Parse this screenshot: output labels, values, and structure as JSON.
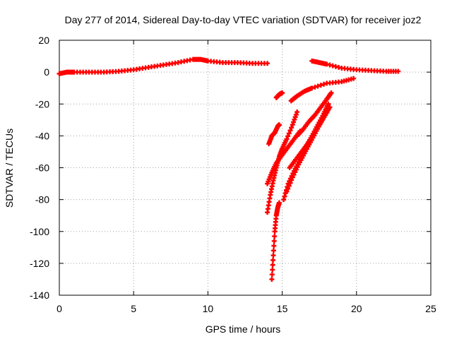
{
  "chart_data": {
    "type": "scatter",
    "title": "Day 277 of 2014, Sidereal Day-to-day VTEC variation (SDTVAR) for receiver joz2",
    "xlabel": "GPS time / hours",
    "ylabel": "SDTVAR / TECUs",
    "xlim": [
      0,
      25
    ],
    "ylim": [
      -140,
      20
    ],
    "xticks": [
      "0",
      "5",
      "10",
      "15",
      "20",
      "25"
    ],
    "yticks": [
      "20",
      "0",
      "-20",
      "-40",
      "-60",
      "-80",
      "-100",
      "-120",
      "-140"
    ],
    "grid": true,
    "legend": "none",
    "marker": "+",
    "color": "#ff0000",
    "series": [
      {
        "points": [
          [
            0,
            -1
          ],
          [
            0.5,
            0
          ],
          [
            1,
            0
          ],
          [
            2,
            0
          ],
          [
            3,
            0
          ],
          [
            4,
            0.5
          ],
          [
            5,
            1.5
          ],
          [
            6,
            3
          ],
          [
            7,
            4.5
          ],
          [
            8,
            6
          ],
          [
            9,
            8
          ],
          [
            9.5,
            8
          ],
          [
            10,
            7
          ],
          [
            11,
            6
          ],
          [
            12,
            6
          ],
          [
            13,
            5.5
          ],
          [
            14,
            5.5
          ]
        ]
      },
      {
        "points": [
          [
            17,
            7
          ],
          [
            17.5,
            6
          ],
          [
            18,
            5
          ],
          [
            19,
            2.5
          ],
          [
            20,
            1.5
          ],
          [
            21,
            1
          ],
          [
            22,
            0.5
          ],
          [
            22.8,
            0.5
          ]
        ]
      },
      {
        "points": [
          [
            14.1,
            -45
          ],
          [
            14.3,
            -40
          ],
          [
            14.5,
            -38
          ],
          [
            14.7,
            -34
          ],
          [
            14.8,
            -33
          ]
        ]
      },
      {
        "points": [
          [
            14.6,
            -16
          ],
          [
            14.8,
            -14
          ],
          [
            15,
            -13
          ]
        ]
      },
      {
        "points": [
          [
            15.6,
            -18
          ],
          [
            16,
            -15
          ],
          [
            16.5,
            -12
          ],
          [
            17,
            -10
          ],
          [
            18,
            -7
          ],
          [
            19,
            -6
          ],
          [
            19.8,
            -4
          ]
        ]
      },
      {
        "points": [
          [
            14,
            -88
          ],
          [
            14.2,
            -77
          ],
          [
            14.4,
            -68
          ],
          [
            14.6,
            -60
          ],
          [
            14.8,
            -53
          ],
          [
            15,
            -48
          ],
          [
            15.3,
            -42
          ],
          [
            15.7,
            -33
          ],
          [
            16,
            -25
          ]
        ]
      },
      {
        "points": [
          [
            14,
            -70
          ],
          [
            14.3,
            -63
          ],
          [
            14.6,
            -57
          ],
          [
            15,
            -52
          ],
          [
            15.4,
            -47
          ],
          [
            15.8,
            -42
          ],
          [
            16.2,
            -37
          ]
        ]
      },
      {
        "points": [
          [
            14.3,
            -130
          ],
          [
            14.4,
            -115
          ],
          [
            14.5,
            -100
          ],
          [
            14.6,
            -90
          ],
          [
            14.7,
            -85
          ],
          [
            14.8,
            -82
          ]
        ]
      },
      {
        "points": [
          [
            15.1,
            -80
          ],
          [
            15.4,
            -70
          ],
          [
            15.8,
            -62
          ],
          [
            16.2,
            -55
          ],
          [
            16.6,
            -47
          ],
          [
            17,
            -40
          ],
          [
            17.4,
            -33
          ],
          [
            17.8,
            -26
          ],
          [
            18.1,
            -20
          ]
        ]
      },
      {
        "points": [
          [
            15.3,
            -75
          ],
          [
            15.7,
            -66
          ],
          [
            16.1,
            -58
          ],
          [
            16.5,
            -51
          ],
          [
            16.9,
            -44
          ],
          [
            17.3,
            -37
          ],
          [
            17.7,
            -30
          ],
          [
            18,
            -24
          ]
        ]
      },
      {
        "points": [
          [
            15.5,
            -60
          ],
          [
            15.9,
            -55
          ],
          [
            16.3,
            -50
          ],
          [
            16.7,
            -45
          ],
          [
            17.1,
            -39
          ],
          [
            17.5,
            -33
          ],
          [
            17.9,
            -27
          ],
          [
            18.2,
            -22
          ]
        ]
      },
      {
        "points": [
          [
            16,
            -40
          ],
          [
            16.4,
            -36
          ],
          [
            16.8,
            -31
          ],
          [
            17.2,
            -27
          ],
          [
            17.6,
            -22
          ],
          [
            18,
            -17
          ],
          [
            18.3,
            -13
          ]
        ]
      }
    ]
  }
}
